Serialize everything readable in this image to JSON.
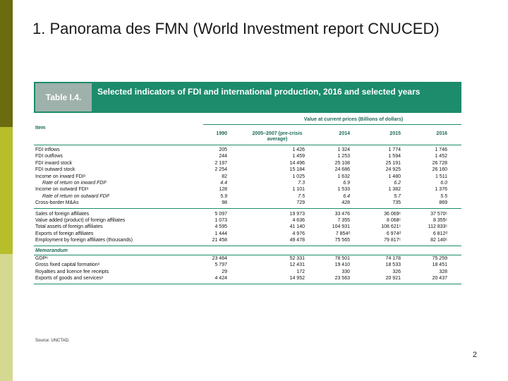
{
  "slide": {
    "title": "1. Panorama des FMN (World Investment report CNUCED)",
    "page_number": "2"
  },
  "table": {
    "tag": "Table I.4.",
    "title": "Selected indicators of FDI and international production, 2016 and selected years",
    "group_header": "Value at current prices (Billions of dollars)",
    "item_header": "Item",
    "columns": [
      "1990",
      "2005–2007 (pre-crisis average)",
      "2014",
      "2015",
      "2016"
    ],
    "sections": [
      {
        "rows": [
          {
            "label": "FDI inflows",
            "sub": false,
            "values": [
              "205",
              "1 426",
              "1 324",
              "1 774",
              "1 746"
            ]
          },
          {
            "label": "FDI outflows",
            "sub": false,
            "values": [
              "244",
              "1 459",
              "1 253",
              "1 594",
              "1 452"
            ]
          },
          {
            "label": "FDI inward stock",
            "sub": false,
            "values": [
              "2 197",
              "14 496",
              "25 108",
              "25 191",
              "26 728"
            ]
          },
          {
            "label": "FDI outward stock",
            "sub": false,
            "values": [
              "2 254",
              "15 184",
              "24 686",
              "24 925",
              "26 160"
            ]
          },
          {
            "label": "Income on inward FDIᵃ",
            "sub": false,
            "values": [
              "82",
              "1 025",
              "1 632",
              "1 480",
              "1 511"
            ]
          },
          {
            "label": "Rate of return on inward FDIᵇ",
            "sub": true,
            "values": [
              "4.4",
              "7.3",
              "6.9",
              "6.2",
              "6.0"
            ]
          },
          {
            "label": "Income on outward FDIᵃ",
            "sub": false,
            "values": [
              "128",
              "1 101",
              "1 533",
              "1 382",
              "1 376"
            ]
          },
          {
            "label": "Rate of return on outward FDIᵇ",
            "sub": true,
            "values": [
              "5.9",
              "7.5",
              "6.4",
              "5.7",
              "5.5"
            ]
          },
          {
            "label": "Cross-border M&As",
            "sub": false,
            "values": [
              "98",
              "729",
              "428",
              "735",
              "869"
            ]
          }
        ]
      },
      {
        "rows": [
          {
            "label": "Sales of foreign affiliates",
            "sub": false,
            "values": [
              "5 097",
              "19 973",
              "33 476",
              "36 069ᶜ",
              "37 570ᶜ"
            ]
          },
          {
            "label": "Value added (product) of foreign affiliates",
            "sub": false,
            "values": [
              "1 073",
              "4 636",
              "7 355",
              "8 068ᶜ",
              "8 355ᶜ"
            ]
          },
          {
            "label": "Total assets of foreign affiliates",
            "sub": false,
            "values": [
              "4 595",
              "41 140",
              "104 931",
              "108 621ᶜ",
              "112 833ᶜ"
            ]
          },
          {
            "label": "Exports of foreign affiliates",
            "sub": false,
            "values": [
              "1 444",
              "4 976",
              "7 854ᵈ",
              "6 974ᵈ",
              "6 812ᵈ"
            ]
          },
          {
            "label": "Employment by foreign affiliates (thousands)",
            "sub": false,
            "values": [
              "21 458",
              "49 478",
              "75 565",
              "79 817ᶜ",
              "82 140ᶜ"
            ]
          }
        ]
      }
    ],
    "memo_label": "Memorandum",
    "memo_rows": [
      {
        "label": "GDPᵉ",
        "sub": false,
        "values": [
          "23 464",
          "52 331",
          "78 501",
          "74 178",
          "75 259"
        ]
      },
      {
        "label": "Gross fixed capital formationᵉ",
        "sub": false,
        "values": [
          "5 797",
          "12 431",
          "19 410",
          "18 533",
          "18 451"
        ]
      },
      {
        "label": "Royalties and licence fee receipts",
        "sub": false,
        "values": [
          "29",
          "172",
          "330",
          "326",
          "328"
        ]
      },
      {
        "label": "Exports of goods and servicesᵉ",
        "sub": false,
        "values": [
          "4 424",
          "14 952",
          "23 563",
          "20 921",
          "20 437"
        ]
      }
    ],
    "source": "Source: UNCTAD."
  },
  "colors": {
    "banner": "#1c8c6c",
    "tag": "#9fb1ab",
    "bar_dark": "#6b6b0f",
    "bar_mid": "#b6be2a",
    "bar_light": "#d4d890"
  }
}
